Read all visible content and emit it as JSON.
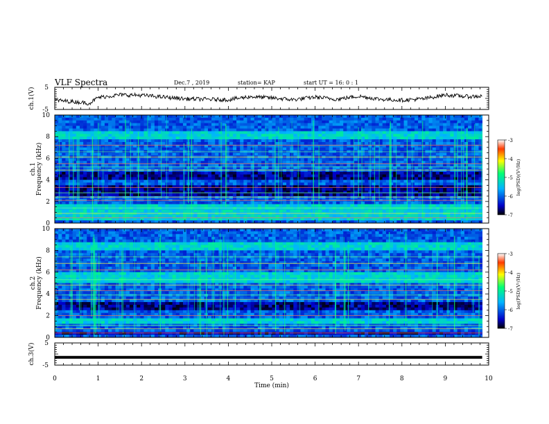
{
  "header": {
    "title": "VLF Spectra",
    "date": "Dec.7 , 2019",
    "station": "station= KAP",
    "start": "start  UT =  16: 0 : 1"
  },
  "chart_data": [
    {
      "type": "line",
      "name": "ch1-waveform",
      "ylabel": "ch.1(V)",
      "ylim": [
        -5,
        5
      ],
      "yticks": [
        "5",
        "-5"
      ],
      "x_unit": "min",
      "xlim": [
        0,
        10
      ],
      "data_end_min": 9.85,
      "description_level": [
        [
          0.0,
          -0.8
        ],
        [
          0.5,
          -1.6
        ],
        [
          0.8,
          -2.2
        ],
        [
          1.0,
          0.4
        ],
        [
          1.5,
          1.6
        ],
        [
          2.0,
          1.4
        ],
        [
          2.5,
          0.6
        ],
        [
          3.0,
          -0.2
        ],
        [
          3.5,
          -0.4
        ],
        [
          4.0,
          -0.6
        ],
        [
          4.5,
          0.8
        ],
        [
          5.0,
          0.2
        ],
        [
          5.5,
          -0.6
        ],
        [
          6.0,
          0.6
        ],
        [
          6.5,
          -0.4
        ],
        [
          7.0,
          1.0
        ],
        [
          7.5,
          -0.4
        ],
        [
          8.0,
          -0.8
        ],
        [
          8.5,
          -0.2
        ],
        [
          9.0,
          1.6
        ],
        [
          9.5,
          0.8
        ],
        [
          9.85,
          1.0
        ]
      ]
    },
    {
      "type": "heatmap",
      "name": "ch1-spectrogram",
      "ylabel_line1": "ch.1",
      "ylabel_line2": "Frequency (kHz)",
      "ylim": [
        0,
        10
      ],
      "yticks": [
        "0",
        "2",
        "4",
        "6",
        "8",
        "10"
      ],
      "xlim": [
        0,
        10
      ],
      "data_end_min": 9.85,
      "colorbar": {
        "label": "log(PSD)(V²/Hz)",
        "range": [
          -7,
          -3
        ],
        "ticks": [
          "-3",
          "-4",
          "-5",
          "-6",
          "-7"
        ]
      },
      "dark_bands_khz": [
        [
          2.6,
          3.6
        ],
        [
          4.1,
          4.7
        ]
      ],
      "bright_bands_khz": [
        [
          0.3,
          1.8
        ],
        [
          7.7,
          8.6
        ]
      ],
      "spectral_lines_khz": [
        0.5,
        0.9,
        1.4,
        2.1,
        2.4,
        2.8,
        3.3,
        4.9,
        5.2,
        5.5,
        6.1,
        6.6,
        7.2
      ]
    },
    {
      "type": "heatmap",
      "name": "ch2-spectrogram",
      "ylabel_line1": "ch.2",
      "ylabel_line2": "Frequency (kHz)",
      "ylim": [
        0,
        10
      ],
      "yticks": [
        "0",
        "2",
        "4",
        "6",
        "8",
        "10"
      ],
      "xlim": [
        0,
        10
      ],
      "data_end_min": 9.85,
      "colorbar": {
        "label": "log(PSD)(V²/Hz)",
        "range": [
          -7,
          -3
        ],
        "ticks": [
          "-3",
          "-4",
          "-5",
          "-6",
          "-7"
        ]
      },
      "dark_bands_khz": [
        [
          2.4,
          3.3
        ],
        [
          0.2,
          0.6
        ]
      ],
      "bright_bands_khz": [
        [
          5.0,
          6.0
        ],
        [
          1.2,
          1.8
        ],
        [
          8.0,
          8.8
        ]
      ],
      "spectral_lines_khz": [
        0.4,
        0.8,
        1.1,
        2.0,
        3.5,
        3.9,
        4.3,
        4.8,
        5.3,
        6.2,
        6.8,
        7.4
      ]
    },
    {
      "type": "line",
      "name": "ch3-waveform",
      "ylabel": "ch.3(V)",
      "ylim": [
        -5,
        5
      ],
      "yticks": [
        "5",
        "-5"
      ],
      "xlim": [
        0,
        10
      ],
      "constant_value": -1.5,
      "data_end_min": 9.85,
      "xlabel": "Time (min)",
      "xticks": [
        "0",
        "1",
        "2",
        "3",
        "4",
        "5",
        "6",
        "7",
        "8",
        "9",
        "10"
      ]
    }
  ]
}
